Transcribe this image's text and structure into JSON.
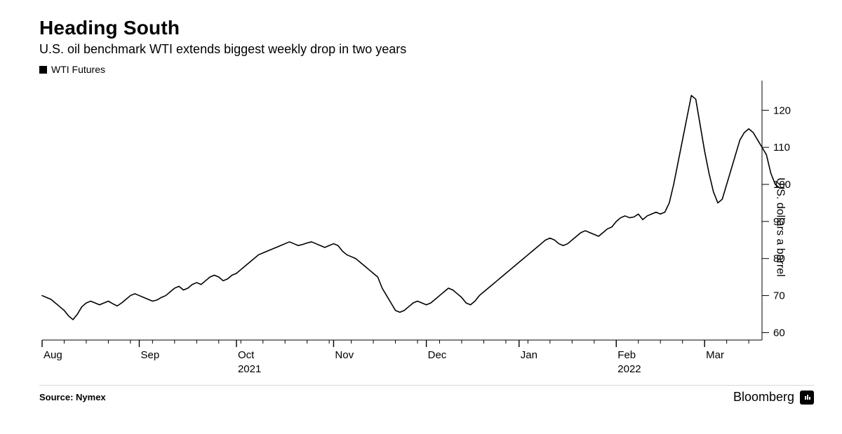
{
  "title": "Heading South",
  "subtitle": "U.S. oil benchmark WTI extends biggest weekly drop in two years",
  "legend": {
    "series_label": "WTI Futures",
    "swatch_color": "#000000"
  },
  "source_label": "Source: Nymex",
  "brand_label": "Bloomberg",
  "y_axis_title": "U.S. dollars a barrel",
  "chart": {
    "type": "line",
    "background_color": "#ffffff",
    "line_color": "#000000",
    "line_width": 1.6,
    "axis_color": "#000000",
    "tick_color": "#000000",
    "tick_length_major": 10,
    "tick_length_minor": 5,
    "tick_label_fontsize": 15,
    "ylim": [
      58,
      128
    ],
    "yticks": [
      60,
      70,
      80,
      90,
      100,
      110,
      120
    ],
    "x_index_range": [
      0,
      163
    ],
    "x_major_ticks": [
      {
        "label": "Aug",
        "idx": 0
      },
      {
        "label": "Sep",
        "idx": 22
      },
      {
        "label": "Oct",
        "idx": 44
      },
      {
        "label": "Nov",
        "idx": 66
      },
      {
        "label": "Dec",
        "idx": 87
      },
      {
        "label": "Jan",
        "idx": 108
      },
      {
        "label": "Feb",
        "idx": 130
      },
      {
        "label": "Mar",
        "idx": 150
      }
    ],
    "x_year_labels": [
      {
        "label": "2021",
        "idx": 44
      },
      {
        "label": "2022",
        "idx": 130
      }
    ],
    "x_minor_tick_start": 0,
    "x_minor_tick_step": 5,
    "series": {
      "name": "WTI Futures",
      "values": [
        70,
        69.5,
        69,
        68,
        67,
        66,
        64.5,
        63.5,
        65,
        67,
        68,
        68.5,
        68,
        67.5,
        68,
        68.5,
        67.8,
        67.2,
        68,
        69,
        70,
        70.5,
        70,
        69.5,
        69,
        68.5,
        68.8,
        69.5,
        70,
        71,
        72,
        72.5,
        71.5,
        72,
        73,
        73.5,
        73,
        74,
        75,
        75.5,
        75,
        74,
        74.5,
        75.5,
        76,
        77,
        78,
        79,
        80,
        81,
        81.5,
        82,
        82.5,
        83,
        83.5,
        84,
        84.5,
        84,
        83.5,
        83.8,
        84.2,
        84.5,
        84,
        83.5,
        83,
        83.5,
        84,
        83.5,
        82,
        81,
        80.5,
        80,
        79,
        78,
        77,
        76,
        75,
        72,
        70,
        68,
        66,
        65.5,
        66,
        67,
        68,
        68.5,
        68,
        67.5,
        68,
        69,
        70,
        71,
        72,
        71.5,
        70.5,
        69.5,
        68,
        67.5,
        68.5,
        70,
        71,
        72,
        73,
        74,
        75,
        76,
        77,
        78,
        79,
        80,
        81,
        82,
        83,
        84,
        85,
        85.5,
        85,
        84,
        83.5,
        84,
        85,
        86,
        87,
        87.5,
        87,
        86.5,
        86,
        87,
        88,
        88.5,
        90,
        91,
        91.5,
        91,
        91.2,
        92,
        90.5,
        91.5,
        92,
        92.5,
        92,
        92.5,
        95,
        100,
        106,
        112,
        118,
        124,
        123,
        116,
        109,
        103,
        98,
        95,
        96,
        100,
        104,
        108,
        112,
        114,
        115,
        114,
        112,
        110,
        108,
        103,
        100,
        99,
        99
      ]
    }
  }
}
